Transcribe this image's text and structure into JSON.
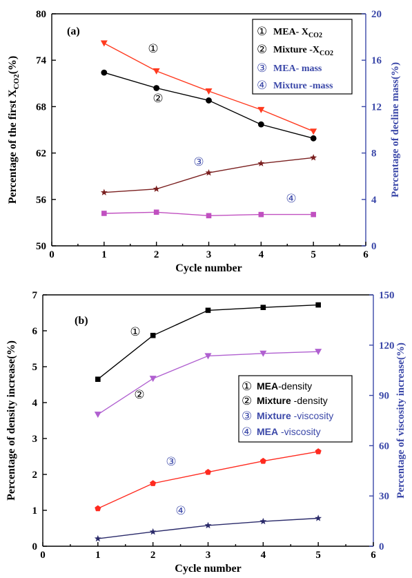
{
  "chart_data": [
    {
      "type": "line",
      "panel": "(a)",
      "xlabel": "Cycle number",
      "ylabel": "Percentage of the first X",
      "ylabel_sub": "CO2",
      "ylabel_suffix": "(%)",
      "y2label": "Percentage of decline mass(%)",
      "xlim": [
        0,
        6
      ],
      "xticks": [
        0,
        1,
        2,
        3,
        4,
        5,
        6
      ],
      "ylim": [
        50,
        80
      ],
      "yticks": [
        50,
        56,
        62,
        68,
        74,
        80
      ],
      "y2lim": [
        0,
        20
      ],
      "y2ticks": [
        0,
        4,
        8,
        12,
        16,
        20
      ],
      "legend_position": "top-right",
      "series": [
        {
          "name": "MEA- X",
          "name_sub": "CO2",
          "marker_label": "①",
          "axis": "left",
          "color": "#ff3a1f",
          "marker": "triangle-down",
          "x": [
            1,
            2,
            3,
            4,
            5
          ],
          "values": [
            76.2,
            72.6,
            70.0,
            67.6,
            64.8
          ]
        },
        {
          "name": "Mixture -X",
          "name_sub": "CO2",
          "marker_label": "②",
          "axis": "left",
          "color": "#000000",
          "marker": "circle",
          "x": [
            1,
            2,
            3,
            4,
            5
          ],
          "values": [
            72.4,
            70.4,
            68.8,
            65.7,
            63.9
          ]
        },
        {
          "name": "MEA- mass",
          "marker_label": "③",
          "axis": "right",
          "color": "#7a1f1f",
          "marker": "star",
          "x": [
            1,
            2,
            3,
            4,
            5
          ],
          "values": [
            4.6,
            4.9,
            6.3,
            7.1,
            7.6
          ]
        },
        {
          "name": "Mixture -mass",
          "marker_label": "④",
          "axis": "right",
          "color": "#c050c0",
          "marker": "square",
          "x": [
            1,
            2,
            3,
            4,
            5
          ],
          "values": [
            2.8,
            2.9,
            2.6,
            2.7,
            2.7
          ]
        }
      ]
    },
    {
      "type": "line",
      "panel": "(b)",
      "xlabel": "Cycle number",
      "ylabel": "Percentage  of density increase(%)",
      "y2label": "Percentage  of viscosity increase(%)",
      "xlim": [
        0,
        6
      ],
      "xticks": [
        0,
        1,
        2,
        3,
        4,
        5,
        6
      ],
      "ylim": [
        0,
        7
      ],
      "yticks": [
        0,
        1,
        2,
        3,
        4,
        5,
        6,
        7
      ],
      "y2lim": [
        0,
        150
      ],
      "y2ticks": [
        0,
        30,
        60,
        90,
        120,
        150
      ],
      "legend_position": "center-right",
      "series": [
        {
          "name_bold": "MEA",
          "name": "-density",
          "marker_label": "①",
          "axis": "left",
          "color": "#000000",
          "marker": "square",
          "x": [
            1,
            2,
            3,
            4,
            5
          ],
          "values": [
            4.65,
            5.87,
            6.57,
            6.65,
            6.72
          ]
        },
        {
          "name_bold": "Mixture",
          "name": " -density",
          "marker_label": "②",
          "axis": "left",
          "color": "#b060d0",
          "marker": "triangle-down",
          "x": [
            1,
            2,
            3,
            4,
            5
          ],
          "values": [
            3.67,
            4.67,
            5.3,
            5.37,
            5.42
          ]
        },
        {
          "name_bold": "Mixture",
          "name": " -viscosity",
          "marker_label": "③",
          "axis": "right",
          "color": "#ff2a1f",
          "marker": "pentagon",
          "x": [
            1,
            2,
            3,
            4,
            5
          ],
          "values": [
            22.5,
            37.5,
            44.2,
            50.8,
            56.5
          ]
        },
        {
          "name_bold": "MEA",
          "name": " -viscosity",
          "marker_label": "④",
          "axis": "right",
          "color": "#2a2a6a",
          "marker": "star",
          "x": [
            1,
            2,
            3,
            4,
            5
          ],
          "values": [
            4.5,
            8.6,
            12.4,
            14.8,
            16.7
          ]
        }
      ]
    }
  ]
}
